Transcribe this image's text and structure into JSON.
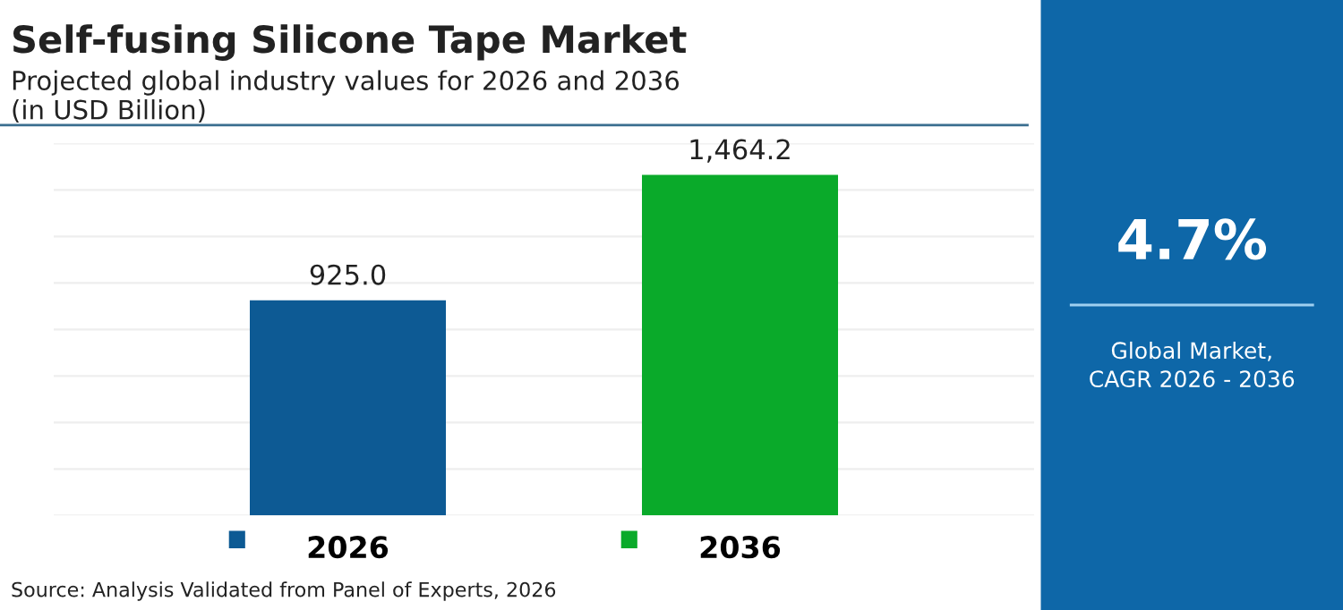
{
  "chart_data": [
    {
      "type": "bar",
      "title": "Self-fusing Silicone Tape Market",
      "subtitle": "Projected global industry values for 2026 and 2036\n(in USD Billion)",
      "categories": [
        "2026",
        "2036"
      ],
      "values": [
        925.0,
        1464.2
      ],
      "colors": [
        "#0d5a94",
        "#0aaa2a"
      ],
      "value_labels": [
        "925.0",
        "1,464.2"
      ],
      "ylim": [
        0,
        1600
      ],
      "yticks": [
        {
          "value": 0,
          "label": null
        },
        {
          "value": 200,
          "label": null
        },
        {
          "value": 400,
          "label": null
        },
        {
          "value": 600,
          "label": null
        },
        {
          "value": 800,
          "label": null
        },
        {
          "value": 1000,
          "label": null
        },
        {
          "value": 1200,
          "label": null
        },
        {
          "value": 1400,
          "label": null
        },
        {
          "value": 1600,
          "label": null
        }
      ],
      "grid": "y",
      "tick_labels": "x",
      "annotations": [
        "Source: Analysis Validated from Panel of Experts, 2026"
      ]
    },
    {
      "type": "other",
      "title": "4.7%",
      "subtitle": "Global Market,\nCAGR 2026 - 2036"
    }
  ]
}
